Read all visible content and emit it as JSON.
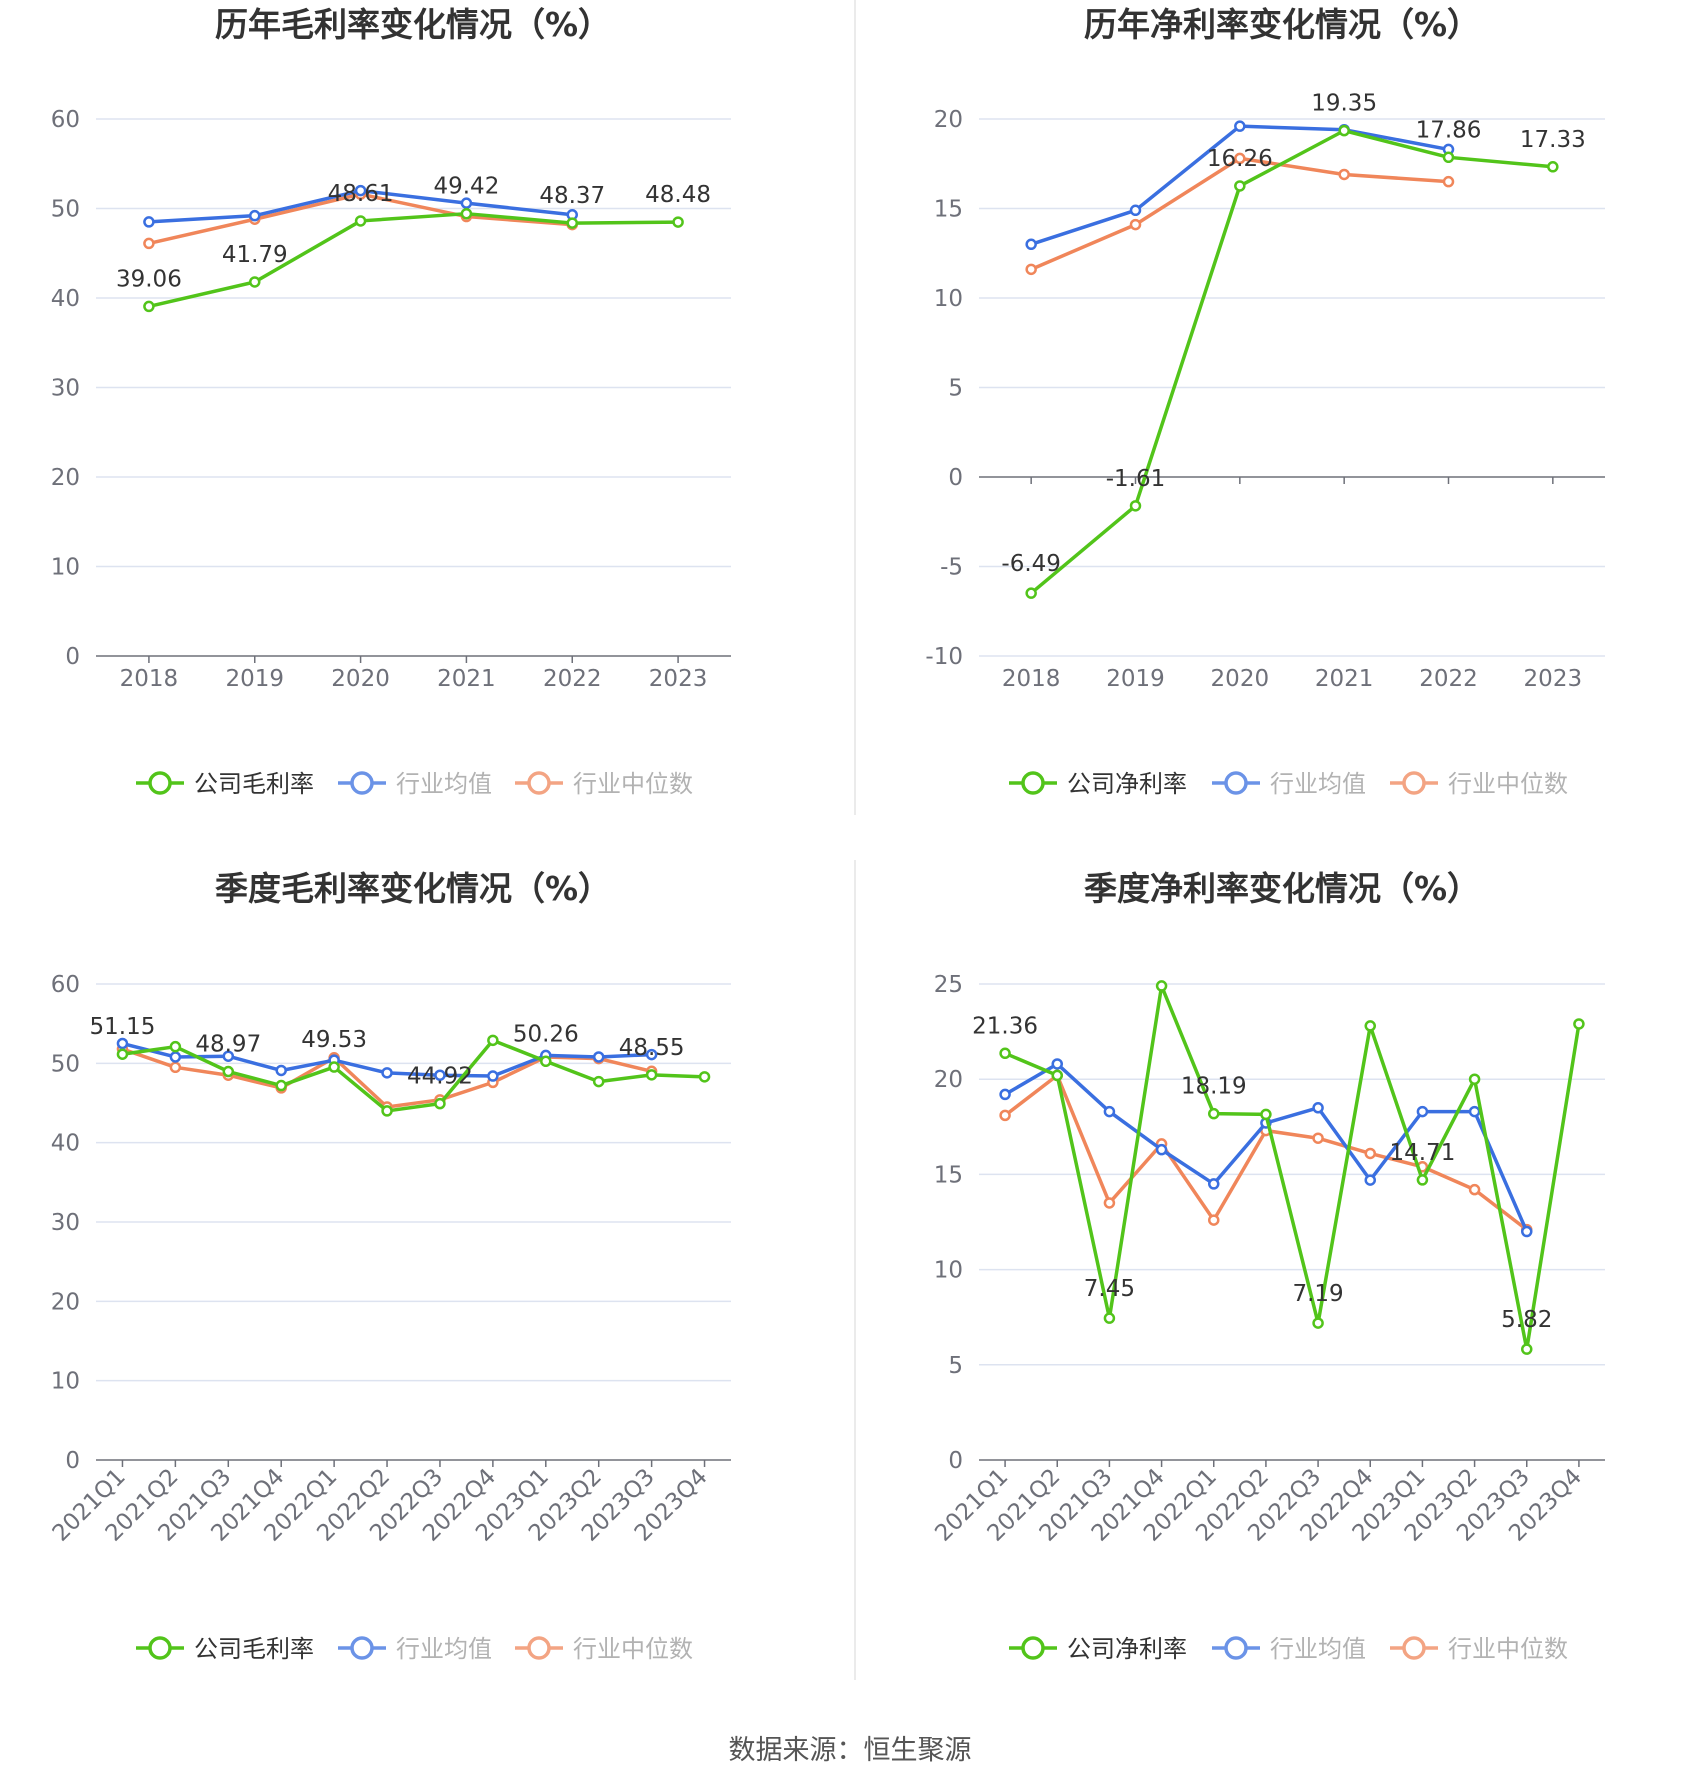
{
  "colors": {
    "company": "#52c41a",
    "industry_avg": "#3a6fe0",
    "industry_median": "#f0865a",
    "grid": "#dde3f0",
    "axis": "#6e7079",
    "tick_text": "#6e7079",
    "title": "#333333",
    "divider": "#ebebeb"
  },
  "source_text": "数据来源：恒生聚源",
  "chart_data": [
    {
      "type": "line",
      "title": "历年毛利率变化情况（%）",
      "categories": [
        "2018",
        "2019",
        "2020",
        "2021",
        "2022",
        "2023"
      ],
      "yticks": [
        "60",
        "50",
        "40",
        "30",
        "20",
        "10",
        "0"
      ],
      "ylim": [
        0,
        60
      ],
      "grid": true,
      "legend_position": "bottom",
      "series": [
        {
          "name": "公司毛利率",
          "values": [
            39.06,
            41.79,
            48.61,
            49.42,
            48.37,
            48.48
          ],
          "labels": [
            "39.06",
            "41.79",
            "48.61",
            "49.42",
            "48.37",
            "48.48"
          ]
        },
        {
          "name": "行业均值",
          "values": [
            48.5,
            49.2,
            52.0,
            50.6,
            49.3,
            null
          ]
        },
        {
          "name": "行业中位数",
          "values": [
            46.1,
            48.8,
            51.6,
            49.1,
            48.2,
            null
          ]
        }
      ]
    },
    {
      "type": "line",
      "title": "历年净利率变化情况（%）",
      "categories": [
        "2018",
        "2019",
        "2020",
        "2021",
        "2022",
        "2023"
      ],
      "yticks": [
        "20",
        "15",
        "10",
        "5",
        "0",
        "-5",
        "-10"
      ],
      "ylim": [
        -10,
        20
      ],
      "grid": true,
      "legend_position": "bottom",
      "series": [
        {
          "name": "公司净利率",
          "values": [
            -6.49,
            -1.61,
            16.26,
            19.35,
            17.86,
            17.33
          ],
          "labels": [
            "-6.49",
            "-1.61",
            "16.26",
            "19.35",
            "17.86",
            "17.33"
          ]
        },
        {
          "name": "行业均值",
          "values": [
            13.0,
            14.9,
            19.6,
            19.4,
            18.3,
            null
          ]
        },
        {
          "name": "行业中位数",
          "values": [
            11.6,
            14.1,
            17.8,
            16.9,
            16.5,
            null
          ]
        }
      ]
    },
    {
      "type": "line",
      "title": "季度毛利率变化情况（%）",
      "categories": [
        "2021Q1",
        "2021Q2",
        "2021Q3",
        "2021Q4",
        "2022Q1",
        "2022Q2",
        "2022Q3",
        "2022Q4",
        "2023Q1",
        "2023Q2",
        "2023Q3",
        "2023Q4"
      ],
      "yticks": [
        "60",
        "50",
        "40",
        "30",
        "20",
        "10",
        "0"
      ],
      "ylim": [
        0,
        60
      ],
      "grid": true,
      "legend_position": "bottom",
      "series": [
        {
          "name": "公司毛利率",
          "values": [
            51.15,
            52.1,
            48.97,
            47.2,
            49.53,
            44.0,
            44.92,
            52.9,
            50.26,
            47.7,
            48.55,
            48.3
          ],
          "labels": [
            "51.15",
            "",
            "48.97",
            "",
            "49.53",
            "",
            "44.92",
            "",
            "50.26",
            "",
            "48.55",
            ""
          ]
        },
        {
          "name": "行业均值",
          "values": [
            52.5,
            50.8,
            50.9,
            49.1,
            50.4,
            48.8,
            48.5,
            48.4,
            51.0,
            50.8,
            51.1,
            null
          ]
        },
        {
          "name": "行业中位数",
          "values": [
            51.8,
            49.5,
            48.5,
            46.9,
            50.7,
            44.5,
            45.4,
            47.6,
            50.8,
            50.6,
            49.0,
            null
          ]
        }
      ]
    },
    {
      "type": "line",
      "title": "季度净利率变化情况（%）",
      "categories": [
        "2021Q1",
        "2021Q2",
        "2021Q3",
        "2021Q4",
        "2022Q1",
        "2022Q2",
        "2022Q3",
        "2022Q4",
        "2023Q1",
        "2023Q2",
        "2023Q3",
        "2023Q4"
      ],
      "yticks": [
        "25",
        "20",
        "15",
        "10",
        "5",
        "0"
      ],
      "ylim": [
        0,
        25
      ],
      "grid": true,
      "legend_position": "bottom",
      "series": [
        {
          "name": "公司净利率",
          "values": [
            21.36,
            20.2,
            7.45,
            24.9,
            18.19,
            18.15,
            7.19,
            22.8,
            14.71,
            20.0,
            5.82,
            22.9
          ],
          "labels": [
            "21.36",
            "",
            "7.45",
            "",
            "18.19",
            "",
            "7.19",
            "",
            "14.71",
            "",
            "5.82",
            ""
          ]
        },
        {
          "name": "行业均值",
          "values": [
            19.2,
            20.8,
            18.3,
            16.3,
            14.5,
            17.7,
            18.5,
            14.7,
            18.3,
            18.3,
            12.0,
            null
          ]
        },
        {
          "name": "行业中位数",
          "values": [
            18.1,
            20.2,
            13.5,
            16.6,
            12.6,
            17.3,
            16.9,
            16.1,
            15.4,
            14.2,
            12.1,
            null
          ]
        }
      ]
    }
  ]
}
